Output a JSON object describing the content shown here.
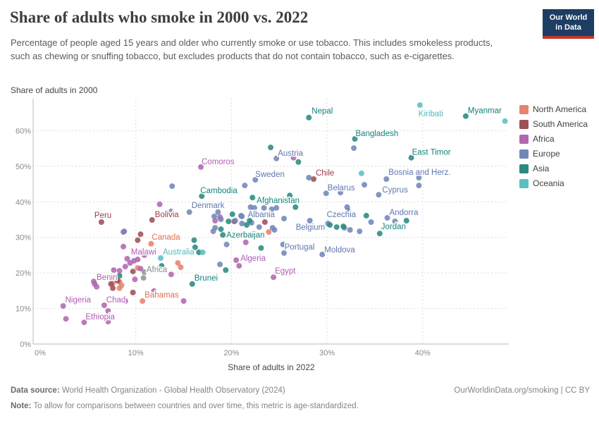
{
  "header": {
    "title": "Share of adults who smoke in 2000 vs. 2022",
    "subtitle": "Percentage of people aged 15 years and older who currently smoke or use tobacco. This includes smokeless products, such as chewing or snuffing tobacco, but excludes products that do not contain tobacco, such as e-cigarettes.",
    "logo": {
      "line1": "Our World",
      "line2": "in Data",
      "bg_color": "#1d3d63",
      "bar_color": "#c4372c"
    }
  },
  "chart_data": {
    "type": "scatter",
    "x_axis": {
      "title": "Share of adults in 2022",
      "tick_values": [
        0,
        10,
        20,
        30,
        40
      ],
      "tick_labels": [
        "0%",
        "10%",
        "20%",
        "30%",
        "40%"
      ],
      "lim": [
        0,
        49
      ]
    },
    "y_axis": {
      "title": "Share of adults in 2000",
      "tick_values": [
        0,
        10,
        20,
        30,
        40,
        50,
        60
      ],
      "tick_labels": [
        "0%",
        "10%",
        "20%",
        "30%",
        "40%",
        "50%",
        "60%"
      ],
      "lim": [
        0,
        69
      ]
    },
    "grid": "dashed",
    "legend_position": "right",
    "legend": [
      {
        "label": "North America",
        "color": "#E8826E"
      },
      {
        "label": "South America",
        "color": "#9E5058"
      },
      {
        "label": "Africa",
        "color": "#B168B1"
      },
      {
        "label": "Europe",
        "color": "#7286B8"
      },
      {
        "label": "Asia",
        "color": "#2A8A80"
      },
      {
        "label": "Oceania",
        "color": "#5BC0C2"
      }
    ],
    "series": [
      {
        "name": "North America",
        "color": "#E8826E",
        "label_color": "#DE6E52",
        "points": [
          {
            "x": 11.6,
            "y": 28.2,
            "label": "Canada",
            "dx": 1,
            "dy": -10
          },
          {
            "x": 10.7,
            "y": 12.1,
            "label": "Bahamas",
            "dx": 3,
            "dy": -9
          },
          {
            "x": 14.4,
            "y": 22.8
          },
          {
            "x": 14.7,
            "y": 21.6
          },
          {
            "x": 23.9,
            "y": 31.5
          },
          {
            "x": 8.3,
            "y": 17.5
          },
          {
            "x": 8.5,
            "y": 16.5
          },
          {
            "x": 8.3,
            "y": 15.7
          },
          {
            "x": 10.2,
            "y": 21.4
          },
          {
            "x": 7.6,
            "y": 17.1
          }
        ]
      },
      {
        "name": "South America",
        "color": "#9E5058",
        "label_color": "#9D3C42",
        "points": [
          {
            "x": 28.6,
            "y": 46.4,
            "label": "Chile",
            "dx": 3,
            "dy": -9
          },
          {
            "x": 6.4,
            "y": 34.3,
            "label": "Peru",
            "dx": -10,
            "dy": -10
          },
          {
            "x": 11.7,
            "y": 34.9,
            "label": "Bolivia",
            "dx": 4,
            "dy": -8
          },
          {
            "x": 10.5,
            "y": 30.9
          },
          {
            "x": 10.2,
            "y": 29.2
          },
          {
            "x": 23.5,
            "y": 34.3
          },
          {
            "x": 20.3,
            "y": 34.5
          },
          {
            "x": 7.4,
            "y": 16.9
          },
          {
            "x": 7.6,
            "y": 15.7
          },
          {
            "x": 9.7,
            "y": 14.5
          },
          {
            "x": 9.7,
            "y": 20.4
          },
          {
            "x": 8.1,
            "y": 17.8
          }
        ]
      },
      {
        "name": "Africa",
        "color": "#B168B1",
        "label_color": "#B05CB3",
        "points": [
          {
            "x": 16.8,
            "y": 49.8,
            "label": "Comoros",
            "dx": 1,
            "dy": -8
          },
          {
            "x": 26.5,
            "y": 52.4
          },
          {
            "x": 12.5,
            "y": 39.3
          },
          {
            "x": 18.3,
            "y": 34.7
          },
          {
            "x": 18.8,
            "y": 35.7
          },
          {
            "x": 21.5,
            "y": 28.6
          },
          {
            "x": 20.5,
            "y": 23.6,
            "label": "Algeria",
            "dx": 6,
            "dy": -3
          },
          {
            "x": 20.8,
            "y": 22.0
          },
          {
            "x": 24.4,
            "y": 18.8,
            "label": "Egypt",
            "dx": 2,
            "dy": -9
          },
          {
            "x": 8.7,
            "y": 31.5
          },
          {
            "x": 8.7,
            "y": 27.4
          },
          {
            "x": 10.9,
            "y": 25.0,
            "label": "Malawi",
            "dx": -19,
            "dy": -5
          },
          {
            "x": 9.1,
            "y": 24.0
          },
          {
            "x": 9.8,
            "y": 23.4
          },
          {
            "x": 10.2,
            "y": 23.8
          },
          {
            "x": 10.5,
            "y": 21.2
          },
          {
            "x": 9.9,
            "y": 18.2
          },
          {
            "x": 13.7,
            "y": 19.6
          },
          {
            "x": 15.0,
            "y": 12.1
          },
          {
            "x": 11.9,
            "y": 14.9
          },
          {
            "x": 5.6,
            "y": 17.6,
            "label": "Benin",
            "dx": 4,
            "dy": -6
          },
          {
            "x": 5.7,
            "y": 16.9
          },
          {
            "x": 5.9,
            "y": 16.1
          },
          {
            "x": 7.7,
            "y": 20.8
          },
          {
            "x": 8.3,
            "y": 20.6
          },
          {
            "x": 8.9,
            "y": 21.8
          },
          {
            "x": 9.4,
            "y": 22.8
          },
          {
            "x": 2.4,
            "y": 10.7,
            "label": "Nigeria",
            "dx": 3,
            "dy": -9
          },
          {
            "x": 8.9,
            "y": 12.1,
            "label": "Chad",
            "dx": -27,
            "dy": -2
          },
          {
            "x": 6.7,
            "y": 10.9
          },
          {
            "x": 7.1,
            "y": 9.3
          },
          {
            "x": 4.6,
            "y": 6.1,
            "label": "Ethiopia",
            "dx": 2,
            "dy": -8
          },
          {
            "x": 2.7,
            "y": 7.1
          },
          {
            "x": 7.1,
            "y": 6.3
          }
        ]
      },
      {
        "name": "Africa (region)",
        "color": "#8E969E",
        "label_color": "#82898F",
        "points": [
          {
            "x": 10.9,
            "y": 20.2,
            "label": "Africa",
            "dx": 3,
            "dy": -4
          },
          {
            "x": 10.8,
            "y": 18.6
          }
        ]
      },
      {
        "name": "Europe",
        "color": "#7286B8",
        "label_color": "#6077AE",
        "points": [
          {
            "x": 24.7,
            "y": 52.2,
            "label": "Austria",
            "dx": 2,
            "dy": -8
          },
          {
            "x": 32.8,
            "y": 55.1
          },
          {
            "x": 22.5,
            "y": 46.2,
            "label": "Sweden",
            "dx": 0,
            "dy": -8
          },
          {
            "x": 21.4,
            "y": 44.6
          },
          {
            "x": 28.1,
            "y": 46.8
          },
          {
            "x": 36.2,
            "y": 46.4,
            "label": "Bosnia and Herz.",
            "dx": 3,
            "dy": -10
          },
          {
            "x": 39.6,
            "y": 46.8
          },
          {
            "x": 39.6,
            "y": 44.6
          },
          {
            "x": 33.9,
            "y": 44.8
          },
          {
            "x": 29.9,
            "y": 42.4,
            "label": "Belarus",
            "dx": 2,
            "dy": -8
          },
          {
            "x": 31.4,
            "y": 42.6
          },
          {
            "x": 35.4,
            "y": 42.0,
            "label": "Cyprus",
            "dx": 5,
            "dy": -7
          },
          {
            "x": 13.8,
            "y": 44.4
          },
          {
            "x": 15.6,
            "y": 37.1,
            "label": "Denmark",
            "dx": 3,
            "dy": -10
          },
          {
            "x": 18.6,
            "y": 37.1
          },
          {
            "x": 13.7,
            "y": 37.3
          },
          {
            "x": 32.1,
            "y": 38.5,
            "label": "Czechia",
            "dx": -29,
            "dy": 10
          },
          {
            "x": 32.2,
            "y": 37.5
          },
          {
            "x": 22.0,
            "y": 38.5
          },
          {
            "x": 22.4,
            "y": 38.3
          },
          {
            "x": 23.4,
            "y": 38.3,
            "label": "Albania",
            "dx": -23,
            "dy": 9
          },
          {
            "x": 24.2,
            "y": 37.9
          },
          {
            "x": 24.7,
            "y": 38.3
          },
          {
            "x": 21.1,
            "y": 35.9
          },
          {
            "x": 18.9,
            "y": 35.1
          },
          {
            "x": 20.4,
            "y": 34.7
          },
          {
            "x": 21.1,
            "y": 33.9
          },
          {
            "x": 18.3,
            "y": 32.7
          },
          {
            "x": 28.2,
            "y": 34.7,
            "label": "Belgium",
            "dx": -20,
            "dy": 9
          },
          {
            "x": 25.5,
            "y": 35.3
          },
          {
            "x": 30.1,
            "y": 33.9
          },
          {
            "x": 31.8,
            "y": 32.7
          },
          {
            "x": 32.4,
            "y": 32.1
          },
          {
            "x": 33.4,
            "y": 31.7
          },
          {
            "x": 34.6,
            "y": 34.3
          },
          {
            "x": 36.3,
            "y": 35.5,
            "label": "Andorra",
            "dx": 3,
            "dy": -8
          },
          {
            "x": 37.1,
            "y": 34.5
          },
          {
            "x": 29.5,
            "y": 25.2,
            "label": "Moldova",
            "dx": 3,
            "dy": -7
          },
          {
            "x": 25.4,
            "y": 28.0,
            "label": "Portugal",
            "dx": 2,
            "dy": 3
          },
          {
            "x": 25.5,
            "y": 25.6
          },
          {
            "x": 24.5,
            "y": 32.1
          },
          {
            "x": 24.3,
            "y": 32.7
          },
          {
            "x": 22.9,
            "y": 32.9
          },
          {
            "x": 22.1,
            "y": 34.1
          },
          {
            "x": 21.0,
            "y": 36.1
          },
          {
            "x": 18.2,
            "y": 35.9
          },
          {
            "x": 19.5,
            "y": 28.0
          },
          {
            "x": 18.8,
            "y": 22.4
          },
          {
            "x": 8.8,
            "y": 31.7
          },
          {
            "x": 18.1,
            "y": 31.7
          }
        ]
      },
      {
        "name": "Asia",
        "color": "#2A8A80",
        "label_color": "#12837B",
        "points": [
          {
            "x": 28.1,
            "y": 63.7,
            "label": "Nepal",
            "dx": 4,
            "dy": -10
          },
          {
            "x": 44.5,
            "y": 64.1,
            "label": "Myanmar",
            "dx": 3,
            "dy": -8
          },
          {
            "x": 32.9,
            "y": 57.7,
            "label": "Bangladesh",
            "dx": 1,
            "dy": -8
          },
          {
            "x": 38.8,
            "y": 52.4,
            "label": "East Timor",
            "dx": 1,
            "dy": -8
          },
          {
            "x": 24.1,
            "y": 55.3
          },
          {
            "x": 27.0,
            "y": 51.2
          },
          {
            "x": 16.9,
            "y": 41.6,
            "label": "Cambodia",
            "dx": -2,
            "dy": -8
          },
          {
            "x": 22.2,
            "y": 41.2,
            "label": "Afghanistan",
            "dx": 6,
            "dy": 4
          },
          {
            "x": 26.1,
            "y": 41.8
          },
          {
            "x": 26.7,
            "y": 38.5
          },
          {
            "x": 21.9,
            "y": 34.7
          },
          {
            "x": 18.9,
            "y": 32.3
          },
          {
            "x": 19.1,
            "y": 30.7,
            "label": "Azerbaijan",
            "dx": 5,
            "dy": 0
          },
          {
            "x": 20.1,
            "y": 36.5
          },
          {
            "x": 19.7,
            "y": 34.5
          },
          {
            "x": 21.6,
            "y": 33.5
          },
          {
            "x": 35.5,
            "y": 31.1,
            "label": "Jordan",
            "dx": 2,
            "dy": -10
          },
          {
            "x": 34.1,
            "y": 36.1
          },
          {
            "x": 38.3,
            "y": 34.7
          },
          {
            "x": 30.3,
            "y": 33.5
          },
          {
            "x": 31.0,
            "y": 32.9
          },
          {
            "x": 31.7,
            "y": 33.1
          },
          {
            "x": 16.1,
            "y": 29.2
          },
          {
            "x": 16.2,
            "y": 27.2
          },
          {
            "x": 16.6,
            "y": 25.8
          },
          {
            "x": 12.7,
            "y": 22.0
          },
          {
            "x": 15.9,
            "y": 16.9,
            "label": "Brunei",
            "dx": 3,
            "dy": -9
          },
          {
            "x": 8.3,
            "y": 19.2
          },
          {
            "x": 19.4,
            "y": 20.8
          },
          {
            "x": 23.1,
            "y": 27.0
          }
        ]
      },
      {
        "name": "Oceania",
        "color": "#5BC0C2",
        "label_color": "#53B8BD",
        "points": [
          {
            "x": 39.7,
            "y": 67.2,
            "label": "Kiribati",
            "dx": -2,
            "dy": 12
          },
          {
            "x": 48.6,
            "y": 62.7
          },
          {
            "x": 33.6,
            "y": 48.0
          },
          {
            "x": 12.6,
            "y": 24.2,
            "label": "Australia",
            "dx": 3,
            "dy": -9
          },
          {
            "x": 17.0,
            "y": 25.8
          }
        ]
      }
    ]
  },
  "footer": {
    "source_label": "Data source:",
    "source_text": " World Health Organization - Global Health Observatory (2024)",
    "note_label": "Note:",
    "note_text": " To allow for comparisons between countries and over time, this metric is age-standardized.",
    "right_text": "OurWorldinData.org/smoking | CC BY"
  }
}
